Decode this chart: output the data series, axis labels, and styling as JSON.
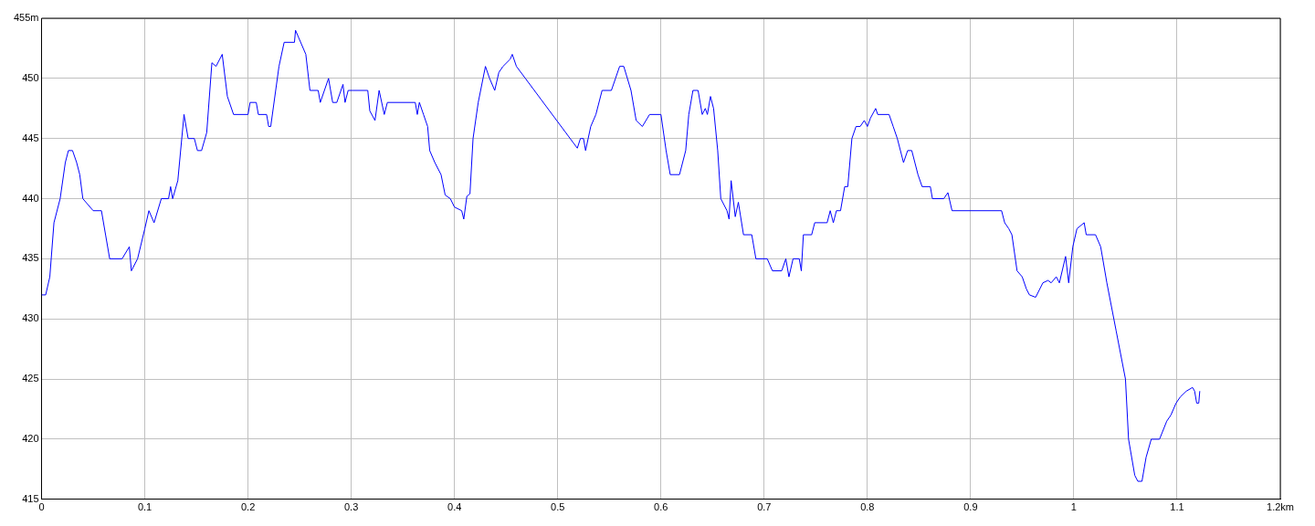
{
  "chart_data": {
    "type": "line",
    "xlim": [
      0,
      1.2
    ],
    "ylim": [
      415,
      455
    ],
    "xticks": [
      0,
      0.1,
      0.2,
      0.3,
      0.4,
      0.5,
      0.6,
      0.7,
      0.8,
      0.9,
      1,
      1.1,
      {
        "value": 1.2,
        "label": "1.2km"
      }
    ],
    "yticks": [
      415,
      420,
      425,
      430,
      435,
      440,
      445,
      450,
      {
        "value": 455,
        "label": "455m"
      }
    ],
    "grid": true,
    "legend": false,
    "marker": "none",
    "line_style": "solid",
    "series": [
      {
        "color": "#0000ff",
        "x": [
          0,
          0.004,
          0.008,
          0.012,
          0.018,
          0.023,
          0.026,
          0.03,
          0.034,
          0.037,
          0.04,
          0.05,
          0.058,
          0.062,
          0.066,
          0.078,
          0.085,
          0.087,
          0.093,
          0.1,
          0.104,
          0.109,
          0.116,
          0.123,
          0.125,
          0.127,
          0.132,
          0.138,
          0.142,
          0.148,
          0.151,
          0.155,
          0.16,
          0.165,
          0.169,
          0.175,
          0.18,
          0.186,
          0.2,
          0.202,
          0.208,
          0.21,
          0.218,
          0.22,
          0.222,
          0.23,
          0.235,
          0.245,
          0.246,
          0.256,
          0.26,
          0.268,
          0.27,
          0.274,
          0.278,
          0.282,
          0.286,
          0.292,
          0.294,
          0.297,
          0.302,
          0.316,
          0.318,
          0.323,
          0.327,
          0.332,
          0.335,
          0.362,
          0.364,
          0.366,
          0.37,
          0.374,
          0.376,
          0.381,
          0.387,
          0.391,
          0.396,
          0.4,
          0.407,
          0.409,
          0.412,
          0.415,
          0.418,
          0.423,
          0.43,
          0.434,
          0.439,
          0.443,
          0.447,
          0.454,
          0.456,
          0.46,
          0.519,
          0.522,
          0.525,
          0.527,
          0.532,
          0.537,
          0.543,
          0.552,
          0.556,
          0.56,
          0.564,
          0.571,
          0.576,
          0.582,
          0.589,
          0.6,
          0.605,
          0.609,
          0.618,
          0.624,
          0.627,
          0.631,
          0.636,
          0.64,
          0.643,
          0.645,
          0.648,
          0.651,
          0.655,
          0.658,
          0.664,
          0.666,
          0.668,
          0.672,
          0.675,
          0.68,
          0.688,
          0.692,
          0.703,
          0.708,
          0.717,
          0.721,
          0.724,
          0.728,
          0.734,
          0.736,
          0.738,
          0.746,
          0.749,
          0.761,
          0.764,
          0.767,
          0.77,
          0.774,
          0.778,
          0.781,
          0.785,
          0.789,
          0.793,
          0.797,
          0.8,
          0.803,
          0.808,
          0.81,
          0.821,
          0.825,
          0.829,
          0.835,
          0.839,
          0.843,
          0.846,
          0.849,
          0.853,
          0.861,
          0.863,
          0.874,
          0.878,
          0.882,
          0.93,
          0.933,
          0.937,
          0.94,
          0.945,
          0.95,
          0.954,
          0.957,
          0.963,
          0.97,
          0.975,
          0.978,
          0.983,
          0.986,
          0.992,
          0.995,
          0.999,
          1.003,
          1.01,
          1.012,
          1.021,
          1.026,
          1.032,
          1.041,
          1.05,
          1.053,
          1.059,
          1.062,
          1.066,
          1.07,
          1.075,
          1.083,
          1.09,
          1.094,
          1.099,
          1.103,
          1.109,
          1.115,
          1.117,
          1.119,
          1.121,
          1.122
        ],
        "values": [
          432,
          432,
          433.5,
          438,
          440,
          443,
          444,
          444,
          443,
          442,
          440,
          439,
          439,
          437,
          435,
          435,
          436,
          434,
          435,
          437.5,
          439,
          438,
          440,
          440,
          441,
          440,
          441.5,
          447,
          445,
          445,
          444,
          444,
          445.5,
          451.3,
          451,
          452,
          448.5,
          447,
          447,
          448,
          448,
          447,
          447,
          446,
          446,
          451,
          453,
          453,
          454,
          452,
          449,
          449,
          448,
          449,
          450,
          448,
          448,
          449.5,
          448,
          449,
          449,
          449,
          447.3,
          446.5,
          449,
          447,
          448,
          448,
          447,
          448,
          447,
          446,
          444,
          443,
          442,
          440.3,
          440,
          439.3,
          439,
          438.3,
          440.2,
          440.4,
          445,
          448,
          451,
          450,
          449,
          450.5,
          451,
          451.6,
          452,
          451,
          444.2,
          445,
          445,
          444,
          446,
          447,
          449,
          449,
          450,
          451,
          451,
          449,
          446.5,
          446,
          447,
          447,
          444,
          442,
          442,
          444,
          447,
          449,
          449,
          447,
          447.5,
          447,
          448.5,
          447.5,
          444,
          440,
          439,
          438.3,
          441.5,
          438.5,
          439.7,
          437,
          437,
          435,
          435,
          434,
          434,
          435,
          433.5,
          435,
          435,
          434,
          437,
          437,
          438,
          438,
          439,
          438,
          439,
          439,
          441,
          441,
          445,
          446,
          446,
          446.5,
          446,
          446.7,
          447.5,
          447,
          447,
          446,
          445,
          443,
          444,
          444,
          443,
          442,
          441,
          441,
          440,
          440,
          440.5,
          439,
          439,
          438,
          437.5,
          437,
          434,
          433.5,
          432.5,
          432,
          431.8,
          433,
          433.2,
          433,
          433.5,
          433,
          435.2,
          433,
          436,
          437.5,
          438,
          437,
          437,
          436,
          433,
          429,
          425,
          420,
          417,
          416.5,
          416.5,
          418.5,
          420,
          420,
          421.5,
          422,
          423,
          423.5,
          424,
          424.3,
          424,
          423,
          423,
          424
        ]
      }
    ]
  }
}
